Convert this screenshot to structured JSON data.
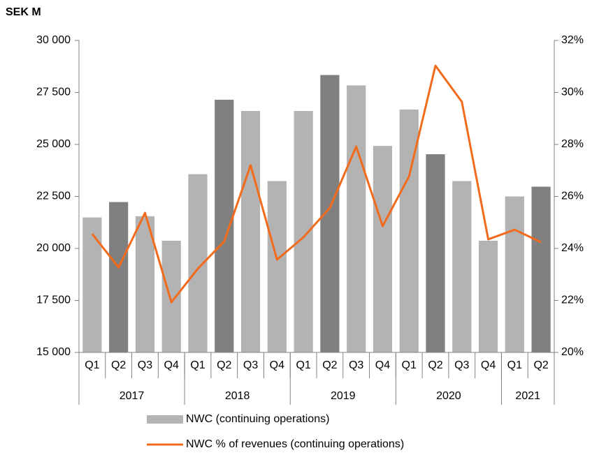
{
  "chart_data": {
    "type": "bar-line",
    "unit_label": "SEK M",
    "categories": [
      "Q1",
      "Q2",
      "Q3",
      "Q4",
      "Q1",
      "Q2",
      "Q3",
      "Q4",
      "Q1",
      "Q2",
      "Q3",
      "Q4",
      "Q1",
      "Q2",
      "Q3",
      "Q4",
      "Q1",
      "Q2"
    ],
    "year_groups": [
      {
        "label": "2017",
        "span": 4
      },
      {
        "label": "2018",
        "span": 4
      },
      {
        "label": "2019",
        "span": 4
      },
      {
        "label": "2020",
        "span": 4
      },
      {
        "label": "2021",
        "span": 2
      }
    ],
    "series": [
      {
        "name": "NWC (continuing operations)",
        "type": "bar",
        "color": "#b3b3b3",
        "colors": [
          "#b3b3b3",
          "#808080",
          "#b3b3b3",
          "#b3b3b3",
          "#b3b3b3",
          "#808080",
          "#b3b3b3",
          "#b3b3b3",
          "#b3b3b3",
          "#808080",
          "#b3b3b3",
          "#b3b3b3",
          "#b3b3b3",
          "#808080",
          "#b3b3b3",
          "#b3b3b3",
          "#b3b3b3",
          "#808080"
        ],
        "values": [
          21490,
          22230,
          21550,
          20370,
          23570,
          27150,
          26610,
          23240,
          26610,
          28340,
          27840,
          24930,
          26680,
          24530,
          23240,
          20370,
          22500,
          22970
        ]
      },
      {
        "name": "NWC % of revenues (continuing operations)",
        "type": "line",
        "axis": "y2",
        "color": "#f26a1b",
        "values": [
          24.56,
          23.27,
          25.37,
          21.93,
          23.22,
          24.27,
          27.2,
          23.57,
          24.43,
          25.56,
          27.92,
          24.86,
          26.77,
          31.03,
          29.64,
          24.35,
          24.72,
          24.24
        ]
      }
    ],
    "ylim": [
      15000,
      30000
    ],
    "yticks": [
      {
        "value": 15000,
        "label": "15 000"
      },
      {
        "value": 17500,
        "label": "17 500"
      },
      {
        "value": 20000,
        "label": "20 000"
      },
      {
        "value": 22500,
        "label": "22 500"
      },
      {
        "value": 25000,
        "label": "25 000"
      },
      {
        "value": 27500,
        "label": "27 500"
      },
      {
        "value": 30000,
        "label": "30 000"
      }
    ],
    "y2lim": [
      20,
      32
    ],
    "y2ticks": [
      {
        "value": 20,
        "label": "20%"
      },
      {
        "value": 22,
        "label": "22%"
      },
      {
        "value": 24,
        "label": "24%"
      },
      {
        "value": 26,
        "label": "26%"
      },
      {
        "value": 28,
        "label": "28%"
      },
      {
        "value": 30,
        "label": "30%"
      },
      {
        "value": 32,
        "label": "32%"
      }
    ],
    "legend": "bottom"
  }
}
